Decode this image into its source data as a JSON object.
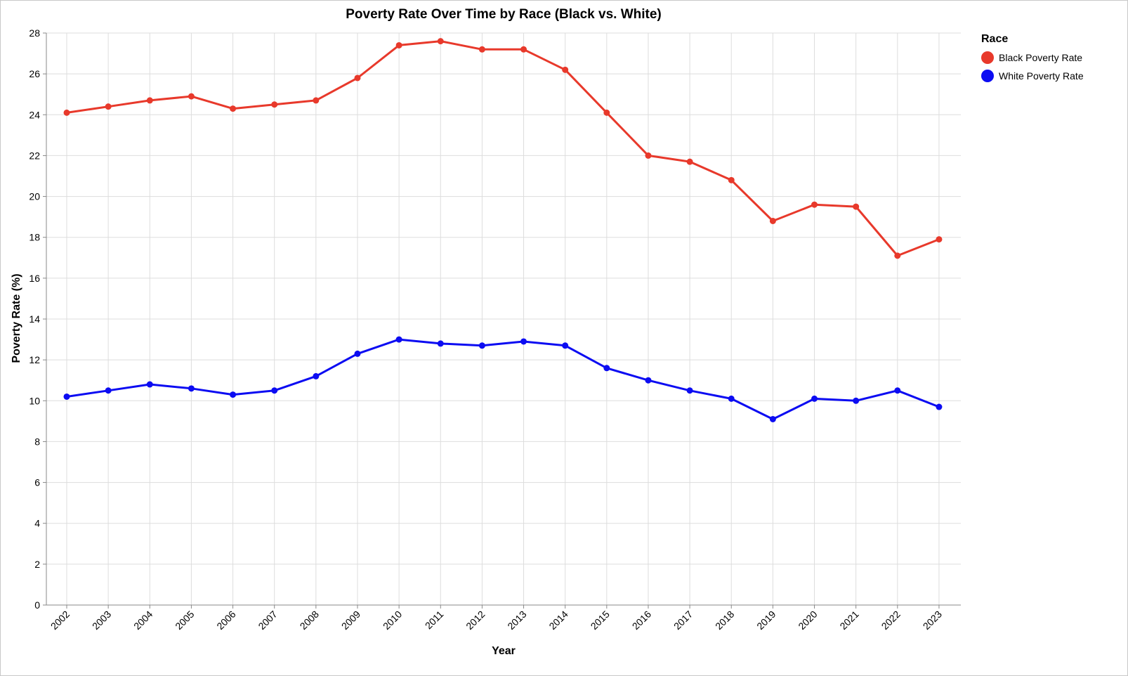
{
  "chart_data": {
    "type": "line",
    "title": "Poverty Rate Over Time by Race (Black vs. White)",
    "xlabel": "Year",
    "ylabel": "Poverty Rate (%)",
    "ylim": [
      0,
      28
    ],
    "yticks": [
      0,
      2,
      4,
      6,
      8,
      10,
      12,
      14,
      16,
      18,
      20,
      22,
      24,
      26,
      28
    ],
    "grid": true,
    "legend": {
      "title": "Race",
      "placement": "top-right"
    },
    "x": [
      "2002",
      "2003",
      "2004",
      "2005",
      "2006",
      "2007",
      "2008",
      "2009",
      "2010",
      "2011",
      "2012",
      "2013",
      "2014",
      "2015",
      "2016",
      "2017",
      "2018",
      "2019",
      "2020",
      "2021",
      "2022",
      "2023"
    ],
    "series": [
      {
        "name": "Black Poverty Rate",
        "color": "#e8392b",
        "values": [
          24.1,
          24.4,
          24.7,
          24.9,
          24.3,
          24.5,
          24.7,
          25.8,
          27.4,
          27.6,
          27.2,
          27.2,
          26.2,
          24.1,
          22.0,
          21.7,
          20.8,
          18.8,
          19.6,
          19.5,
          17.1,
          17.9
        ]
      },
      {
        "name": "White Poverty Rate",
        "color": "#0c0cf2",
        "values": [
          10.2,
          10.5,
          10.8,
          10.6,
          10.3,
          10.5,
          11.2,
          12.3,
          13.0,
          12.8,
          12.7,
          12.9,
          12.7,
          11.6,
          11.0,
          10.5,
          10.1,
          9.1,
          10.1,
          10.0,
          10.5,
          9.7
        ]
      }
    ]
  }
}
